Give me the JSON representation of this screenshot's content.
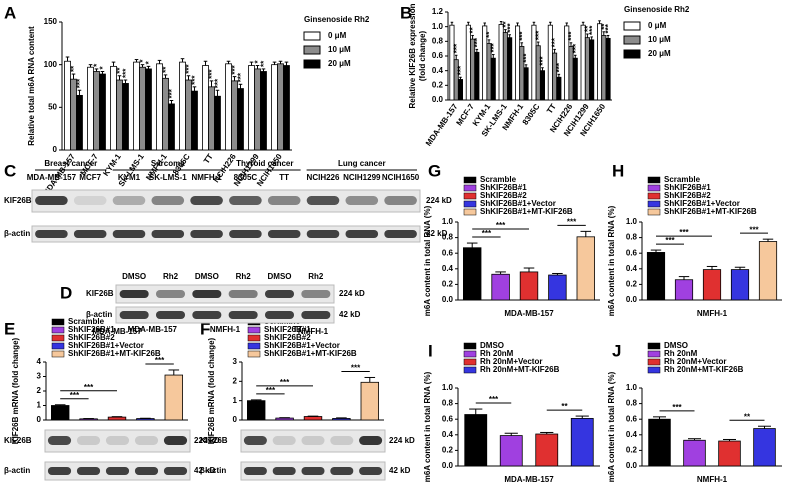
{
  "chart_data": [
    {
      "panel": "A",
      "type": "bar",
      "ylabel": "Relative total m6A RNA content",
      "legend_title": "Ginsenoside Rh2",
      "legend": "right",
      "categories": [
        "MDA-MB-157",
        "MCF-7",
        "KYM-1",
        "SK-LMS-1",
        "NMFH-1",
        "8305C",
        "TT",
        "NCIH226",
        "NCIH1299",
        "NCIH1650"
      ],
      "series": [
        {
          "name": "0 μM",
          "color": "#ffffff",
          "values": [
            104,
            97,
            98,
            103,
            101,
            103,
            99,
            101,
            99,
            100
          ],
          "errors": [
            5,
            3,
            5,
            3,
            4,
            4,
            5,
            3,
            4,
            3
          ],
          "significance": [
            null,
            null,
            null,
            null,
            null,
            null,
            null,
            null,
            null,
            null
          ]
        },
        {
          "name": "10 μM",
          "color": "#8c8c8c",
          "values": [
            83,
            92,
            82,
            97,
            84,
            82,
            74,
            81,
            95,
            101
          ],
          "errors": [
            6,
            3,
            5,
            3,
            4,
            5,
            7,
            5,
            4,
            3
          ],
          "significance": [
            "**",
            "*",
            "**",
            "*",
            "**",
            "***",
            "***",
            "***",
            "*",
            null
          ]
        },
        {
          "name": "20 μM",
          "color": "#000000",
          "values": [
            64,
            89,
            78,
            95,
            54,
            69,
            63,
            72,
            92,
            99
          ],
          "errors": [
            6,
            3,
            4,
            3,
            4,
            5,
            7,
            5,
            3,
            4
          ],
          "significance": [
            "***",
            "*",
            "***",
            "*",
            "***",
            "***",
            "***",
            "***",
            "**",
            null
          ]
        }
      ],
      "ylim": [
        0,
        150
      ],
      "yticks": [
        0,
        50,
        100,
        150
      ]
    },
    {
      "panel": "B",
      "type": "bar",
      "ylabel": [
        "Relative KIF26B expression",
        "(fold change)"
      ],
      "legend_title": "Ginsenoside Rh2",
      "legend": "right",
      "categories": [
        "MDA-MB-157",
        "MCF-7",
        "KYM-1",
        "SK-LMS-1",
        "NMFH-1",
        "8305C",
        "TT",
        "NCIH226",
        "NCIH1299",
        "NCIH1650"
      ],
      "series": [
        {
          "name": "0 μM",
          "color": "#ffffff",
          "values": [
            1.02,
            1.02,
            1.01,
            1.03,
            1.01,
            1.02,
            1.02,
            1.01,
            1.02,
            1.04
          ],
          "errors": [
            0.04,
            0.04,
            0.04,
            0.04,
            0.04,
            0.04,
            0.04,
            0.04,
            0.04,
            0.04
          ],
          "significance": [
            null,
            null,
            null,
            null,
            null,
            null,
            null,
            null,
            null,
            null
          ]
        },
        {
          "name": "10 μM",
          "color": "#8c8c8c",
          "values": [
            0.55,
            0.83,
            0.77,
            0.92,
            0.73,
            0.74,
            0.64,
            0.73,
            0.85,
            0.88
          ],
          "errors": [
            0.06,
            0.05,
            0.05,
            0.04,
            0.05,
            0.05,
            0.05,
            0.05,
            0.05,
            0.05
          ],
          "significance": [
            "***",
            "**",
            "**",
            "**",
            "***",
            "***",
            "***",
            "***",
            "**",
            "**"
          ]
        },
        {
          "name": "20 μM",
          "color": "#000000",
          "values": [
            0.28,
            0.65,
            0.57,
            0.85,
            0.44,
            0.4,
            0.31,
            0.57,
            0.82,
            0.84
          ],
          "errors": [
            0.03,
            0.04,
            0.05,
            0.04,
            0.04,
            0.04,
            0.04,
            0.04,
            0.04,
            0.04
          ],
          "significance": [
            "***",
            "***",
            "***",
            "***",
            "***",
            "***",
            "***",
            "***",
            "***",
            "***"
          ]
        }
      ],
      "ylim": [
        0,
        1.2
      ],
      "yticks": [
        {
          "value": 0,
          "label": "0.0"
        },
        0.2,
        0.4,
        0.6,
        0.8,
        {
          "value": 1,
          "label": "1.0"
        },
        1.2
      ]
    },
    {
      "panel": "G",
      "type": "bar",
      "ylabel": "m6A content in total RNA (%)",
      "xlabel": "MDA-MB-157",
      "legend": "top",
      "categories": [
        "Scramble",
        "ShKIF26B#1",
        "ShKIF26B#2",
        "ShKIF26B#1+Vector",
        "ShKIF26B#1+MT-KIF26B"
      ],
      "colors": [
        "#000000",
        "#a040e0",
        "#e03030",
        "#3535e0",
        "#f6c89c"
      ],
      "values": [
        0.67,
        0.33,
        0.36,
        0.32,
        0.81
      ],
      "errors": [
        0.06,
        0.03,
        0.05,
        0.02,
        0.07
      ],
      "significance": [
        "***",
        "***",
        "***"
      ],
      "ylim": [
        0,
        1
      ],
      "yticks": [
        {
          "value": 0,
          "label": "0.0"
        },
        0.2,
        0.4,
        0.6,
        0.8,
        {
          "value": 1,
          "label": "1.0"
        }
      ]
    },
    {
      "panel": "H",
      "type": "bar",
      "ylabel": "m6A content in total RNA (%)",
      "xlabel": "NMFH-1",
      "legend": "top",
      "categories": [
        "Scramble",
        "ShKIF26B#1",
        "ShKIF26B#2",
        "ShKIF26B#1+Vector",
        "ShKIF26B#1+MT-KIF26B"
      ],
      "colors": [
        "#000000",
        "#a040e0",
        "#e03030",
        "#3535e0",
        "#f6c89c"
      ],
      "values": [
        0.61,
        0.26,
        0.39,
        0.39,
        0.75
      ],
      "errors": [
        0.03,
        0.04,
        0.04,
        0.03,
        0.03
      ],
      "significance": [
        "***",
        "***",
        "***"
      ],
      "ylim": [
        0,
        1
      ],
      "yticks": [
        {
          "value": 0,
          "label": "0.0"
        },
        0.2,
        0.4,
        0.6,
        0.8,
        {
          "value": 1,
          "label": "1.0"
        }
      ]
    },
    {
      "panel": "E",
      "type": "bar",
      "title": "MDA-MB-157",
      "ylabel": "KIF26B mRNA (fold change)",
      "legend": "top",
      "categories": [
        "Scramble",
        "ShKIF26B#1",
        "ShKIF26B#2",
        "ShKIF26B#1+Vector",
        "ShKIF26B#1+MT-KIF26B"
      ],
      "colors": [
        "#000000",
        "#a040e0",
        "#e03030",
        "#3535e0",
        "#f6c89c"
      ],
      "values": [
        1.0,
        0.08,
        0.2,
        0.1,
        3.1
      ],
      "errors": [
        0.05,
        0.02,
        0.03,
        0.02,
        0.35
      ],
      "significance": [
        "***",
        "***",
        "***"
      ],
      "ylim": [
        0,
        4
      ],
      "yticks": [
        0,
        1,
        2,
        3,
        4
      ]
    },
    {
      "panel": "F",
      "type": "bar",
      "title": "NMFH-1",
      "ylabel": "KIF26B mRNA (fold change)",
      "legend": "top",
      "categories": [
        "Scramble",
        "ShKIF26B#1",
        "ShKIF26B#2",
        "ShKIF26B#1+Vector",
        "ShKIF26B#1+MT-KIF26B"
      ],
      "colors": [
        "#000000",
        "#a040e0",
        "#e03030",
        "#3535e0",
        "#f6c89c"
      ],
      "values": [
        1.0,
        0.1,
        0.18,
        0.08,
        1.95
      ],
      "errors": [
        0.04,
        0.02,
        0.02,
        0.03,
        0.25
      ],
      "significance": [
        "***",
        "***",
        "***"
      ],
      "ylim": [
        0,
        3
      ],
      "yticks": [
        0,
        1,
        2,
        3
      ]
    },
    {
      "panel": "I",
      "type": "bar",
      "ylabel": "m6A content in total RNA (%)",
      "xlabel": "MDA-MB-157",
      "legend": "top",
      "categories": [
        "DMSO",
        "Rh 20nM",
        "Rh 20nM+Vector",
        "Rh 20nM+MT-KIF26B"
      ],
      "colors": [
        "#000000",
        "#a040e0",
        "#e03030",
        "#3535e0"
      ],
      "values": [
        0.66,
        0.39,
        0.41,
        0.61
      ],
      "errors": [
        0.07,
        0.03,
        0.02,
        0.03
      ],
      "significance": [
        "***",
        "**"
      ],
      "ylim": [
        0,
        1
      ],
      "yticks": [
        {
          "value": 0,
          "label": "0.0"
        },
        0.2,
        0.4,
        0.6,
        0.8,
        {
          "value": 1,
          "label": "1.0"
        }
      ]
    },
    {
      "panel": "J",
      "type": "bar",
      "ylabel": "m6A content in total RNA (%)",
      "xlabel": "NMFH-1",
      "legend": "top",
      "categories": [
        "DMSO",
        "Rh 20nM",
        "Rh 20nM+Vector",
        "Rh 20nM+MT-KIF26B"
      ],
      "colors": [
        "#000000",
        "#a040e0",
        "#e03030",
        "#3535e0"
      ],
      "values": [
        0.6,
        0.33,
        0.32,
        0.48
      ],
      "errors": [
        0.03,
        0.02,
        0.02,
        0.03
      ],
      "significance": [
        "***",
        "**"
      ],
      "ylim": [
        0,
        1
      ],
      "yticks": [
        {
          "value": 0,
          "label": "0.0"
        },
        0.2,
        0.4,
        0.6,
        0.8,
        {
          "value": 1,
          "label": "1.0"
        }
      ]
    }
  ],
  "blots": [
    {
      "panel": "C",
      "groups": [
        "Breast cancer",
        "Sarcoma",
        "Thyroid cancer",
        "Lung cancer"
      ],
      "lanes": [
        "MDA-MB-157",
        "MCF7",
        "KYM1",
        "SK-LMS-1",
        "NMFH-1",
        "8305C",
        "TT",
        "NCIH226",
        "NCIH1299",
        "NCIH1650"
      ],
      "rows": [
        {
          "name": "KIF26B",
          "size": "224 kD"
        },
        {
          "name": "β-actin",
          "size": "42 kD"
        }
      ]
    },
    {
      "panel": "D",
      "groups": [
        "MDA-MB-157",
        "NMFH-1",
        "TT"
      ],
      "lanes": [
        "DMSO",
        "Rh2",
        "DMSO",
        "Rh2",
        "DMSO",
        "Rh2"
      ],
      "rows": [
        {
          "name": "KIF26B",
          "size": "224 kD"
        },
        {
          "name": "β-actin",
          "size": "42 kD"
        }
      ]
    },
    {
      "rows": [
        {
          "name": "KIF26B",
          "size": "224 kD"
        },
        {
          "name": "β-actin",
          "size": "42 kD"
        }
      ]
    },
    {
      "rows": [
        {
          "name": "KIF26B",
          "size": "224 kD"
        },
        {
          "name": "β-actin",
          "size": "42 kD"
        }
      ]
    }
  ]
}
